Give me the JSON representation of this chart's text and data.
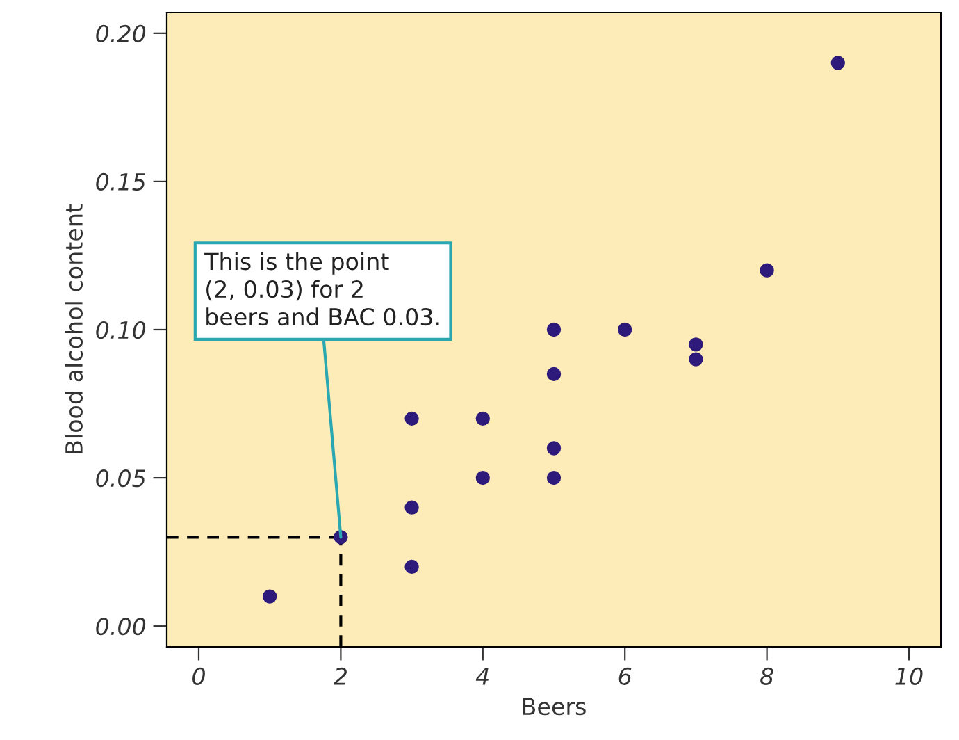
{
  "chart_data": {
    "type": "scatter",
    "xlabel": "Beers",
    "ylabel": "Blood alcohol content",
    "x": [
      1,
      2,
      3,
      3,
      3,
      4,
      4,
      5,
      5,
      5,
      5,
      6,
      7,
      7,
      8,
      9
    ],
    "series": [
      {
        "color": "#2e1a7a",
        "values": [
          0.01,
          0.03,
          0.07,
          0.04,
          0.02,
          0.07,
          0.05,
          0.1,
          0.085,
          0.06,
          0.05,
          0.1,
          0.095,
          0.09,
          0.12,
          0.19
        ]
      }
    ],
    "xlim": [
      -0.45,
      10.45
    ],
    "ylim": [
      -0.007,
      0.207
    ],
    "xticks": [
      {
        "value": 0,
        "label": "0"
      },
      {
        "value": 2,
        "label": "2"
      },
      {
        "value": 4,
        "label": "4"
      },
      {
        "value": 6,
        "label": "6"
      },
      {
        "value": 8,
        "label": "8"
      },
      {
        "value": 10,
        "label": "10"
      }
    ],
    "yticks": [
      {
        "value": 0,
        "label": "0.00"
      },
      {
        "value": 0.05,
        "label": "0.05"
      },
      {
        "value": 0.1,
        "label": "0.10"
      },
      {
        "value": 0.15,
        "label": "0.15"
      },
      {
        "value": 0.2,
        "label": "0.20"
      }
    ],
    "ref_lines": [
      {
        "axis": "x",
        "value": 2,
        "color": "#000000",
        "line_style": "dashed"
      },
      {
        "axis": "y",
        "value": 0.03,
        "color": "#000000",
        "line_style": "dashed"
      }
    ],
    "annotations": [
      {
        "text": "This is the point\n(2, 0.03) for 2\nbeers and BAC 0.03.",
        "x": 2,
        "y": 0.03
      }
    ],
    "marker": "circle",
    "grid": false,
    "legend": false
  }
}
